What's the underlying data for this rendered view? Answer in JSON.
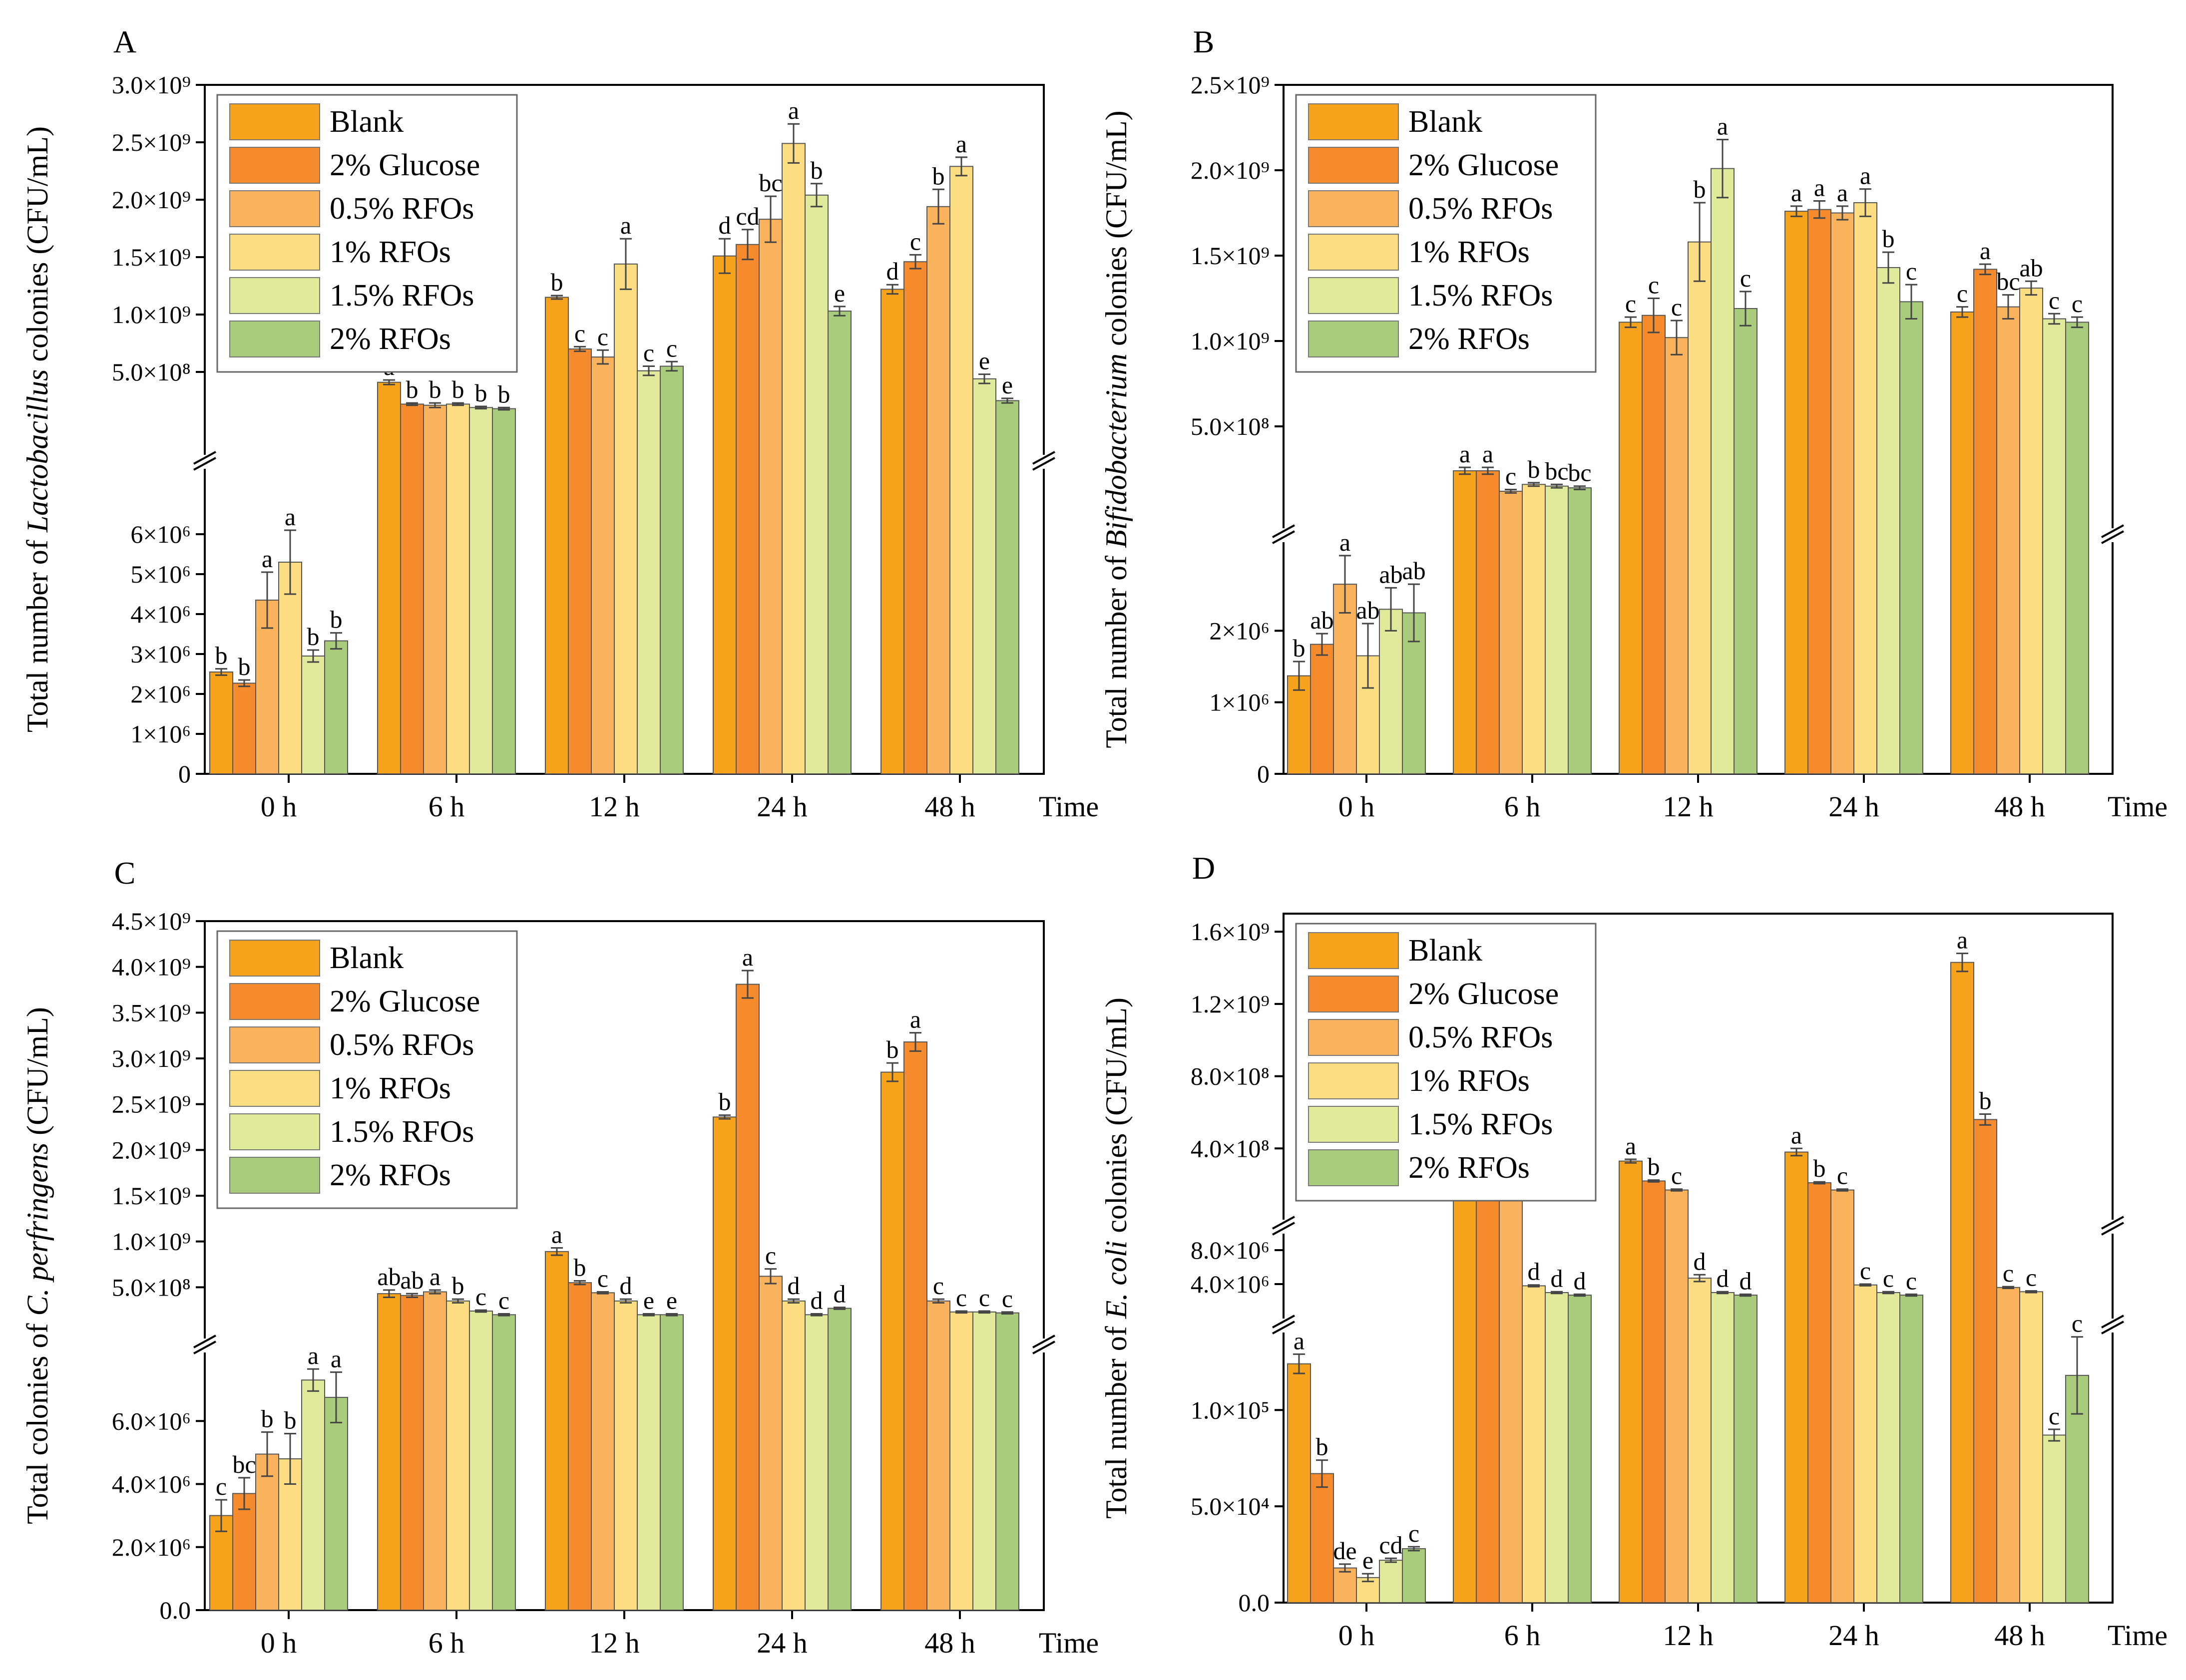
{
  "legend_labels": [
    "Blank",
    "2% Glucose",
    "0.5% RFOs",
    "1% RFOs",
    "1.5% RFOs",
    "2% RFOs"
  ],
  "series_colors": [
    "#F7A21B",
    "#F58B2C",
    "#FBB25C",
    "#FCDD82",
    "#E1E99A",
    "#A8CC7B"
  ],
  "chart_data": [
    {
      "id": "A",
      "panel_label": "A",
      "type": "bar",
      "title": "",
      "ylabel_parts": [
        "Total number of ",
        "Lactobacillus",
        " colonies (CFU/mL)"
      ],
      "xlabel": "Time",
      "categories": [
        "0 h",
        "6 h",
        "12 h",
        "24 h",
        "48 h"
      ],
      "axis_break": true,
      "lower_ylim": [
        0,
        7000000
      ],
      "upper_ylim": [
        0,
        3000000000
      ],
      "lower_ticks": [
        {
          "v": 0,
          "label": "0"
        },
        {
          "v": 1000000,
          "label": "1×10⁶"
        },
        {
          "v": 2000000,
          "label": "2×10⁶"
        },
        {
          "v": 3000000,
          "label": "3×10⁶"
        },
        {
          "v": 4000000,
          "label": "4×10⁶"
        },
        {
          "v": 5000000,
          "label": "5×10⁶"
        },
        {
          "v": 6000000,
          "label": "6×10⁶"
        }
      ],
      "upper_ticks": [
        {
          "v": 500000000,
          "label": "5.0×10⁸"
        },
        {
          "v": 1000000000,
          "label": "1.0×10⁹"
        },
        {
          "v": 1500000000,
          "label": "1.5×10⁹"
        },
        {
          "v": 2000000000,
          "label": "2.0×10⁹"
        },
        {
          "v": 2500000000,
          "label": "2.5×10⁹"
        },
        {
          "v": 3000000000,
          "label": "3.0×10⁹"
        }
      ],
      "series": [
        {
          "name": "Blank",
          "values": [
            2550000,
            410000000,
            1150000000,
            1510000000,
            1220000000
          ],
          "errors": [
            80000,
            20000000,
            15000000,
            150000000,
            40000000
          ],
          "letters": [
            "b",
            "a",
            "b",
            "d",
            "d"
          ]
        },
        {
          "name": "2% Glucose",
          "values": [
            2270000,
            220000000,
            700000000,
            1610000000,
            1460000000
          ],
          "errors": [
            80000,
            10000000,
            20000000,
            130000000,
            60000000
          ],
          "letters": [
            "b",
            "b",
            "c",
            "cd",
            "c"
          ]
        },
        {
          "name": "0.5% RFOs",
          "values": [
            4350000,
            210000000,
            630000000,
            1830000000,
            1940000000
          ],
          "errors": [
            700000,
            20000000,
            60000000,
            200000000,
            150000000
          ],
          "letters": [
            "a",
            "b",
            "c",
            "bc",
            "b"
          ]
        },
        {
          "name": "1% RFOs",
          "values": [
            5300000,
            220000000,
            1440000000,
            2490000000,
            2290000000
          ],
          "errors": [
            800000,
            10000000,
            220000000,
            170000000,
            80000000
          ],
          "letters": [
            "a",
            "b",
            "a",
            "a",
            "a"
          ]
        },
        {
          "name": "1.5% RFOs",
          "values": [
            2950000,
            190000000,
            510000000,
            2040000000,
            440000000
          ],
          "errors": [
            150000,
            10000000,
            40000000,
            100000000,
            40000000
          ],
          "letters": [
            "b",
            "b",
            "c",
            "b",
            "e"
          ]
        },
        {
          "name": "2% RFOs",
          "values": [
            3330000,
            180000000,
            550000000,
            1030000000,
            250000000
          ],
          "errors": [
            200000,
            10000000,
            40000000,
            40000000,
            20000000
          ],
          "letters": [
            "b",
            "b",
            "c",
            "e",
            "e"
          ]
        }
      ]
    },
    {
      "id": "B",
      "panel_label": "B",
      "type": "bar",
      "title": "",
      "ylabel_parts": [
        "Total number of ",
        "Bifidobacterium",
        " colonies (CFU/mL)"
      ],
      "xlabel": "Time",
      "categories": [
        "0 h",
        "6 h",
        "12 h",
        "24 h",
        "48 h"
      ],
      "axis_break": true,
      "lower_ylim": [
        0,
        3000000
      ],
      "upper_ylim": [
        0,
        2500000000
      ],
      "lower_ticks": [
        {
          "v": 0,
          "label": "0"
        },
        {
          "v": 1000000,
          "label": "1×10⁶"
        },
        {
          "v": 2000000,
          "label": "2×10⁶"
        }
      ],
      "upper_ticks": [
        {
          "v": 500000000,
          "label": "5.0×10⁸"
        },
        {
          "v": 1000000000,
          "label": "1.0×10⁹"
        },
        {
          "v": 1500000000,
          "label": "1.5×10⁹"
        },
        {
          "v": 2000000000,
          "label": "2.0×10⁹"
        },
        {
          "v": 2500000000,
          "label": "2.5×10⁹"
        }
      ],
      "series": [
        {
          "name": "Blank",
          "values": [
            1370000,
            240000000,
            1110000000,
            1760000000,
            1170000000
          ],
          "errors": [
            200000,
            20000000,
            30000000,
            30000000,
            30000000
          ],
          "letters": [
            "b",
            "a",
            "c",
            "a",
            "c"
          ]
        },
        {
          "name": "2% Glucose",
          "values": [
            1810000,
            240000000,
            1150000000,
            1770000000,
            1420000000
          ],
          "errors": [
            150000,
            20000000,
            100000000,
            50000000,
            30000000
          ],
          "letters": [
            "ab",
            "a",
            "c",
            "a",
            "a"
          ]
        },
        {
          "name": "0.5% RFOs",
          "values": [
            2650000,
            120000000,
            1020000000,
            1750000000,
            1200000000
          ],
          "errors": [
            400000,
            10000000,
            100000000,
            40000000,
            70000000
          ],
          "letters": [
            "a",
            "c",
            "c",
            "a",
            "bc"
          ]
        },
        {
          "name": "1% RFOs",
          "values": [
            1650000,
            160000000,
            1580000000,
            1810000000,
            1310000000
          ],
          "errors": [
            450000,
            10000000,
            230000000,
            80000000,
            40000000
          ],
          "letters": [
            "ab",
            "b",
            "b",
            "a",
            "ab"
          ]
        },
        {
          "name": "1.5% RFOs",
          "values": [
            2300000,
            150000000,
            2010000000,
            1430000000,
            1130000000
          ],
          "errors": [
            300000,
            10000000,
            170000000,
            90000000,
            30000000
          ],
          "letters": [
            "ab",
            "bc",
            "a",
            "b",
            "c"
          ]
        },
        {
          "name": "2% RFOs",
          "values": [
            2250000,
            140000000,
            1190000000,
            1230000000,
            1110000000
          ],
          "errors": [
            400000,
            10000000,
            100000000,
            100000000,
            30000000
          ],
          "letters": [
            "ab",
            "bc",
            "c",
            "c",
            "c"
          ]
        }
      ]
    },
    {
      "id": "C",
      "panel_label": "C",
      "type": "bar",
      "title": "",
      "ylabel_parts": [
        "Total colonies of ",
        "C. perfringens",
        " (CFU/mL)"
      ],
      "xlabel": "Time",
      "categories": [
        "0 h",
        "6 h",
        "12 h",
        "24 h",
        "48 h"
      ],
      "axis_break": true,
      "lower_ylim": [
        0,
        8000000
      ],
      "upper_ylim": [
        0,
        4500000000
      ],
      "lower_ticks": [
        {
          "v": 0,
          "label": "0.0"
        },
        {
          "v": 2000000,
          "label": "2.0×10⁶"
        },
        {
          "v": 4000000,
          "label": "4.0×10⁶"
        },
        {
          "v": 6000000,
          "label": "6.0×10⁶"
        }
      ],
      "upper_ticks": [
        {
          "v": 500000000,
          "label": "5.0×10⁸"
        },
        {
          "v": 1000000000,
          "label": "1.0×10⁹"
        },
        {
          "v": 1500000000,
          "label": "1.5×10⁹"
        },
        {
          "v": 2000000000,
          "label": "2.0×10⁹"
        },
        {
          "v": 2500000000,
          "label": "2.5×10⁹"
        },
        {
          "v": 3000000000,
          "label": "3.0×10⁹"
        },
        {
          "v": 3500000000,
          "label": "3.5×10⁹"
        },
        {
          "v": 4000000000,
          "label": "4.0×10⁹"
        },
        {
          "v": 4500000000,
          "label": "4.5×10⁹"
        }
      ],
      "series": [
        {
          "name": "Blank",
          "values": [
            3000000,
            430000000,
            890000000,
            2360000000,
            2850000000
          ],
          "errors": [
            500000,
            40000000,
            40000000,
            20000000,
            100000000
          ],
          "letters": [
            "c",
            "ab",
            "a",
            "b",
            "b"
          ]
        },
        {
          "name": "2% Glucose",
          "values": [
            3700000,
            410000000,
            550000000,
            3810000000,
            3180000000
          ],
          "errors": [
            500000,
            20000000,
            20000000,
            150000000,
            100000000
          ],
          "letters": [
            "bc",
            "ab",
            "b",
            "a",
            "a"
          ]
        },
        {
          "name": "0.5% RFOs",
          "values": [
            4950000,
            450000000,
            440000000,
            620000000,
            350000000
          ],
          "errors": [
            700000,
            20000000,
            10000000,
            80000000,
            20000000
          ],
          "letters": [
            "b",
            "a",
            "c",
            "c",
            "c"
          ]
        },
        {
          "name": "1% RFOs",
          "values": [
            4800000,
            350000000,
            350000000,
            350000000,
            230000000
          ],
          "errors": [
            800000,
            20000000,
            20000000,
            20000000,
            10000000
          ],
          "letters": [
            "b",
            "b",
            "d",
            "d",
            "c"
          ]
        },
        {
          "name": "1.5% RFOs",
          "values": [
            7300000,
            240000000,
            200000000,
            200000000,
            230000000
          ],
          "errors": [
            350000,
            10000000,
            10000000,
            10000000,
            10000000
          ],
          "letters": [
            "a",
            "c",
            "e",
            "d",
            "c"
          ]
        },
        {
          "name": "2% RFOs",
          "values": [
            6750000,
            200000000,
            200000000,
            270000000,
            220000000
          ],
          "errors": [
            800000,
            10000000,
            10000000,
            10000000,
            10000000
          ],
          "letters": [
            "a",
            "c",
            "e",
            "d",
            "c"
          ]
        }
      ]
    },
    {
      "id": "D",
      "panel_label": "D",
      "type": "bar",
      "title": "",
      "ylabel_parts": [
        "Total number of ",
        "E. coli",
        " colonies (CFU/mL)"
      ],
      "xlabel": "Time",
      "categories": [
        "0 h",
        "6 h",
        "12 h",
        "24 h",
        "48 h"
      ],
      "axis_break": true,
      "lower_ylim": [
        0,
        140000
      ],
      "mid_ylim": [
        0,
        10000000
      ],
      "upper_ylim": [
        0,
        1700000000
      ],
      "lower_ticks": [
        {
          "v": 0,
          "label": "0.0"
        },
        {
          "v": 50000,
          "label": "5.0×10⁴"
        },
        {
          "v": 100000,
          "label": "1.0×10⁵"
        }
      ],
      "mid_ticks": [
        {
          "v": 4000000,
          "label": "4.0×10⁶"
        },
        {
          "v": 8000000,
          "label": "8.0×10⁶"
        }
      ],
      "upper_ticks": [
        {
          "v": 400000000,
          "label": "4.0×10⁸"
        },
        {
          "v": 800000000,
          "label": "8.0×10⁸"
        },
        {
          "v": 1200000000,
          "label": "1.2×10⁹"
        },
        {
          "v": 1600000000,
          "label": "1.6×10⁹"
        }
      ],
      "series": [
        {
          "name": "Blank",
          "values": [
            124000,
            230000000,
            330000000,
            380000000,
            1430000000
          ],
          "errors": [
            5000,
            5000000,
            10000000,
            20000000,
            50000000
          ],
          "letters": [
            "a",
            "a",
            "a",
            "a",
            "a"
          ]
        },
        {
          "name": "2% Glucose",
          "values": [
            67000,
            210000000,
            220000000,
            210000000,
            560000000
          ],
          "errors": [
            7000,
            5000000,
            5000000,
            5000000,
            30000000
          ],
          "letters": [
            "b",
            "b",
            "b",
            "b",
            "b"
          ]
        },
        {
          "name": "0.5% RFOs",
          "values": [
            18000,
            170000000,
            170000000,
            170000000,
            3600000
          ],
          "errors": [
            2000,
            5000000,
            5000000,
            5000000,
            100000
          ],
          "letters": [
            "de",
            "c",
            "c",
            "c",
            "c"
          ]
        },
        {
          "name": "1% RFOs",
          "values": [
            13000,
            3800000,
            4700000,
            3900000,
            3100000
          ],
          "errors": [
            2000,
            100000,
            400000,
            100000,
            100000
          ],
          "letters": [
            "e",
            "d",
            "d",
            "c",
            "c"
          ]
        },
        {
          "name": "1.5% RFOs",
          "values": [
            22000,
            3000000,
            3000000,
            3000000,
            87000
          ],
          "errors": [
            1000,
            100000,
            100000,
            100000,
            3000
          ],
          "letters": [
            "cd",
            "d",
            "d",
            "c",
            "c"
          ]
        },
        {
          "name": "2% RFOs",
          "values": [
            28000,
            2700000,
            2700000,
            2700000,
            118000
          ],
          "errors": [
            1000,
            100000,
            100000,
            100000,
            20000
          ],
          "letters": [
            "c",
            "d",
            "d",
            "c",
            "c"
          ]
        }
      ]
    }
  ]
}
